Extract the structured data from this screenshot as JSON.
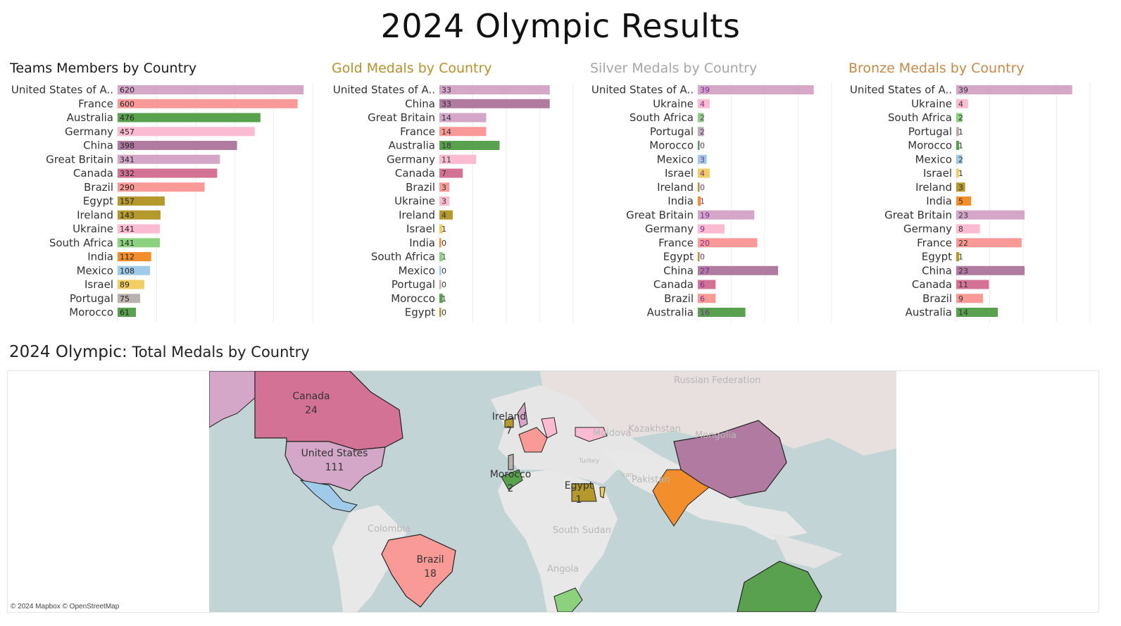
{
  "page_title": "2024 Olympic Results",
  "map": {
    "title_main": "2024 Olympic:",
    "title_rest": "Total Medals by Country",
    "credit": "© 2024 Mapbox © OpenStreetMap",
    "labels": [
      {
        "country": "Canada",
        "value": "24"
      },
      {
        "country": "United States",
        "value": "111"
      },
      {
        "country": "Ireland",
        "value": "7"
      },
      {
        "country": "Morocco",
        "value": "2"
      },
      {
        "country": "Egypt",
        "value": "1"
      },
      {
        "country": "Brazil",
        "value": "18"
      }
    ],
    "faded_labels": [
      "Russian Federation",
      "Kazakhstan",
      "Mongolia",
      "Turkey",
      "Iran",
      "Pakistan",
      "South Sudan",
      "Angola",
      "Colombia",
      "Moldova"
    ]
  },
  "chart_data": [
    {
      "type": "bar",
      "title": "Teams Members by Country",
      "title_color": "#1a1a1a",
      "categories": [
        "United States of A..",
        "France",
        "Australia",
        "Germany",
        "China",
        "Great Britain",
        "Canada",
        "Brazil",
        "Egypt",
        "Ireland",
        "Ukraine",
        "South Africa",
        "India",
        "Mexico",
        "Israel",
        "Portugal",
        "Morocco"
      ],
      "values": [
        620,
        600,
        476,
        457,
        398,
        341,
        332,
        290,
        157,
        143,
        141,
        141,
        112,
        108,
        89,
        75,
        61
      ],
      "xlim": [
        0,
        650
      ]
    },
    {
      "type": "bar",
      "title": "Gold Medals by Country",
      "title_color": "#b8902a",
      "categories": [
        "United States of A..",
        "China",
        "Great Britain",
        "France",
        "Australia",
        "Germany",
        "Canada",
        "Brazil",
        "Ukraine",
        "Ireland",
        "Israel",
        "India",
        "South Africa",
        "Mexico",
        "Portugal",
        "Morocco",
        "Egypt"
      ],
      "values": [
        33,
        33,
        14,
        14,
        18,
        11,
        7,
        3,
        3,
        4,
        1,
        0,
        1,
        0,
        0,
        1,
        0
      ],
      "xlim": [
        0,
        40
      ]
    },
    {
      "type": "bar",
      "title": "Silver Medals by Country",
      "title_color": "#a6a6a6",
      "categories": [
        "United States of A..",
        "Ukraine",
        "South Africa",
        "Portugal",
        "Morocco",
        "Mexico",
        "Israel",
        "Ireland",
        "India",
        "Great Britain",
        "Germany",
        "France",
        "Egypt",
        "China",
        "Canada",
        "Brazil",
        "Australia"
      ],
      "values": [
        39,
        4,
        2,
        2,
        0,
        3,
        4,
        0,
        1,
        19,
        9,
        20,
        0,
        27,
        6,
        6,
        16
      ],
      "xlim": [
        0,
        45
      ]
    },
    {
      "type": "bar",
      "title": "Bronze Medals by Country",
      "title_color": "#c58a45",
      "categories": [
        "United States of A..",
        "Ukraine",
        "South Africa",
        "Portugal",
        "Morocco",
        "Mexico",
        "Israel",
        "Ireland",
        "India",
        "Great Britain",
        "Germany",
        "France",
        "Egypt",
        "China",
        "Canada",
        "Brazil",
        "Australia"
      ],
      "values": [
        39,
        4,
        2,
        1,
        1,
        2,
        1,
        3,
        5,
        23,
        8,
        22,
        1,
        23,
        11,
        9,
        14
      ],
      "xlim": [
        0,
        45
      ]
    }
  ],
  "country_colors": {
    "United States of A..": "#d4a6c8",
    "France": "#fa9a96",
    "Australia": "#59a14f",
    "Germany": "#fbbcd3",
    "China": "#b07aa1",
    "Great Britain": "#d4a6c8",
    "Canada": "#d37295",
    "Brazil": "#fa9a96",
    "Egypt": "#b6992d",
    "Ireland": "#b6992d",
    "Ukraine": "#fbbcd3",
    "South Africa": "#8cd17d",
    "India": "#f28e2b",
    "Mexico": "#a0cbe8",
    "Israel": "#f1ce63",
    "Portugal": "#bab0ac",
    "Morocco": "#59a14f"
  }
}
